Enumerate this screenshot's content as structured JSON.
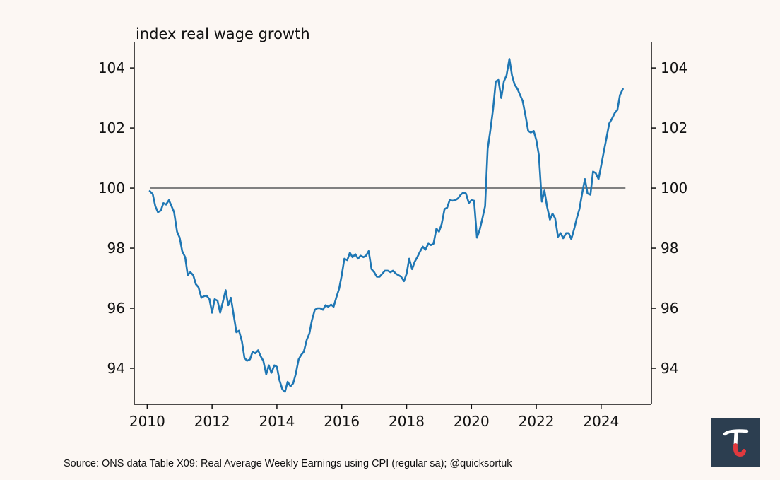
{
  "chart_data": {
    "type": "line",
    "title": "index real wage growth",
    "xlabel": "",
    "ylabel": "",
    "xlim": [
      2009.6,
      2025.55
    ],
    "ylim": [
      92.8,
      104.85
    ],
    "x_ticks": [
      2010,
      2012,
      2014,
      2016,
      2018,
      2020,
      2022,
      2024
    ],
    "y_ticks": [
      94,
      96,
      98,
      100,
      102,
      104
    ],
    "x_tick_labels": [
      "2010",
      "2012",
      "2014",
      "2016",
      "2018",
      "2020",
      "2022",
      "2024"
    ],
    "y_tick_labels": [
      "94",
      "96",
      "98",
      "100",
      "102",
      "104"
    ],
    "reference_line": {
      "value": 100,
      "x_start": 2010.08,
      "x_end": 2024.75,
      "color": "#808080"
    },
    "series": [
      {
        "name": "Real Average Weekly Earnings index",
        "color": "#1f77b4",
        "points": [
          [
            2010.08,
            99.9
          ],
          [
            2010.17,
            99.8
          ],
          [
            2010.25,
            99.4
          ],
          [
            2010.33,
            99.2
          ],
          [
            2010.42,
            99.25
          ],
          [
            2010.5,
            99.5
          ],
          [
            2010.58,
            99.45
          ],
          [
            2010.67,
            99.6
          ],
          [
            2010.75,
            99.4
          ],
          [
            2010.83,
            99.2
          ],
          [
            2010.92,
            98.55
          ],
          [
            2011.0,
            98.35
          ],
          [
            2011.08,
            97.9
          ],
          [
            2011.17,
            97.7
          ],
          [
            2011.25,
            97.1
          ],
          [
            2011.33,
            97.2
          ],
          [
            2011.42,
            97.1
          ],
          [
            2011.5,
            96.8
          ],
          [
            2011.58,
            96.7
          ],
          [
            2011.67,
            96.35
          ],
          [
            2011.75,
            96.4
          ],
          [
            2011.83,
            96.42
          ],
          [
            2011.92,
            96.3
          ],
          [
            2012.0,
            95.85
          ],
          [
            2012.08,
            96.3
          ],
          [
            2012.17,
            96.25
          ],
          [
            2012.25,
            95.85
          ],
          [
            2012.33,
            96.2
          ],
          [
            2012.42,
            96.6
          ],
          [
            2012.5,
            96.1
          ],
          [
            2012.58,
            96.35
          ],
          [
            2012.67,
            95.75
          ],
          [
            2012.75,
            95.2
          ],
          [
            2012.83,
            95.25
          ],
          [
            2012.92,
            94.9
          ],
          [
            2013.0,
            94.35
          ],
          [
            2013.08,
            94.25
          ],
          [
            2013.17,
            94.3
          ],
          [
            2013.25,
            94.55
          ],
          [
            2013.33,
            94.5
          ],
          [
            2013.42,
            94.6
          ],
          [
            2013.5,
            94.4
          ],
          [
            2013.58,
            94.25
          ],
          [
            2013.67,
            93.8
          ],
          [
            2013.75,
            94.1
          ],
          [
            2013.83,
            93.85
          ],
          [
            2013.92,
            94.1
          ],
          [
            2014.0,
            94.05
          ],
          [
            2014.08,
            93.6
          ],
          [
            2014.17,
            93.3
          ],
          [
            2014.25,
            93.22
          ],
          [
            2014.33,
            93.55
          ],
          [
            2014.42,
            93.4
          ],
          [
            2014.5,
            93.5
          ],
          [
            2014.58,
            93.8
          ],
          [
            2014.67,
            94.3
          ],
          [
            2014.75,
            94.45
          ],
          [
            2014.83,
            94.55
          ],
          [
            2014.92,
            94.95
          ],
          [
            2015.0,
            95.15
          ],
          [
            2015.08,
            95.6
          ],
          [
            2015.17,
            95.95
          ],
          [
            2015.25,
            96.0
          ],
          [
            2015.33,
            96.0
          ],
          [
            2015.42,
            95.95
          ],
          [
            2015.5,
            96.1
          ],
          [
            2015.58,
            96.05
          ],
          [
            2015.67,
            96.12
          ],
          [
            2015.75,
            96.05
          ],
          [
            2015.83,
            96.35
          ],
          [
            2015.92,
            96.65
          ],
          [
            2016.0,
            97.1
          ],
          [
            2016.08,
            97.65
          ],
          [
            2016.17,
            97.6
          ],
          [
            2016.25,
            97.85
          ],
          [
            2016.33,
            97.7
          ],
          [
            2016.42,
            97.8
          ],
          [
            2016.5,
            97.65
          ],
          [
            2016.58,
            97.75
          ],
          [
            2016.67,
            97.7
          ],
          [
            2016.75,
            97.75
          ],
          [
            2016.83,
            97.9
          ],
          [
            2016.92,
            97.3
          ],
          [
            2017.0,
            97.2
          ],
          [
            2017.08,
            97.05
          ],
          [
            2017.17,
            97.05
          ],
          [
            2017.25,
            97.15
          ],
          [
            2017.33,
            97.25
          ],
          [
            2017.42,
            97.25
          ],
          [
            2017.5,
            97.2
          ],
          [
            2017.58,
            97.25
          ],
          [
            2017.67,
            97.15
          ],
          [
            2017.75,
            97.1
          ],
          [
            2017.83,
            97.05
          ],
          [
            2017.92,
            96.9
          ],
          [
            2018.0,
            97.15
          ],
          [
            2018.08,
            97.65
          ],
          [
            2018.17,
            97.3
          ],
          [
            2018.25,
            97.55
          ],
          [
            2018.33,
            97.7
          ],
          [
            2018.42,
            97.9
          ],
          [
            2018.5,
            98.05
          ],
          [
            2018.58,
            97.95
          ],
          [
            2018.67,
            98.15
          ],
          [
            2018.75,
            98.1
          ],
          [
            2018.83,
            98.15
          ],
          [
            2018.92,
            98.65
          ],
          [
            2019.0,
            98.55
          ],
          [
            2019.08,
            98.8
          ],
          [
            2019.17,
            99.3
          ],
          [
            2019.25,
            99.35
          ],
          [
            2019.33,
            99.6
          ],
          [
            2019.42,
            99.58
          ],
          [
            2019.5,
            99.6
          ],
          [
            2019.58,
            99.65
          ],
          [
            2019.67,
            99.78
          ],
          [
            2019.75,
            99.85
          ],
          [
            2019.83,
            99.82
          ],
          [
            2019.92,
            99.5
          ],
          [
            2020.0,
            99.6
          ],
          [
            2020.08,
            99.58
          ],
          [
            2020.17,
            98.35
          ],
          [
            2020.25,
            98.6
          ],
          [
            2020.33,
            98.95
          ],
          [
            2020.42,
            99.4
          ],
          [
            2020.5,
            101.3
          ],
          [
            2020.58,
            101.9
          ],
          [
            2020.67,
            102.65
          ],
          [
            2020.75,
            103.55
          ],
          [
            2020.83,
            103.6
          ],
          [
            2020.92,
            103.0
          ],
          [
            2021.0,
            103.55
          ],
          [
            2021.08,
            103.75
          ],
          [
            2021.17,
            104.3
          ],
          [
            2021.25,
            103.75
          ],
          [
            2021.33,
            103.45
          ],
          [
            2021.42,
            103.3
          ],
          [
            2021.5,
            103.1
          ],
          [
            2021.58,
            102.9
          ],
          [
            2021.67,
            102.4
          ],
          [
            2021.75,
            101.9
          ],
          [
            2021.83,
            101.85
          ],
          [
            2021.92,
            101.9
          ],
          [
            2022.0,
            101.6
          ],
          [
            2022.08,
            101.1
          ],
          [
            2022.17,
            99.55
          ],
          [
            2022.25,
            99.92
          ],
          [
            2022.33,
            99.4
          ],
          [
            2022.42,
            98.95
          ],
          [
            2022.5,
            99.15
          ],
          [
            2022.58,
            99.0
          ],
          [
            2022.67,
            98.38
          ],
          [
            2022.75,
            98.5
          ],
          [
            2022.83,
            98.33
          ],
          [
            2022.92,
            98.5
          ],
          [
            2023.0,
            98.5
          ],
          [
            2023.08,
            98.3
          ],
          [
            2023.17,
            98.65
          ],
          [
            2023.25,
            99.0
          ],
          [
            2023.33,
            99.3
          ],
          [
            2023.42,
            99.85
          ],
          [
            2023.5,
            100.3
          ],
          [
            2023.58,
            99.82
          ],
          [
            2023.67,
            99.78
          ],
          [
            2023.75,
            100.55
          ],
          [
            2023.83,
            100.5
          ],
          [
            2023.92,
            100.3
          ],
          [
            2024.0,
            100.75
          ],
          [
            2024.08,
            101.2
          ],
          [
            2024.17,
            101.7
          ],
          [
            2024.25,
            102.15
          ],
          [
            2024.33,
            102.3
          ],
          [
            2024.42,
            102.5
          ],
          [
            2024.5,
            102.6
          ],
          [
            2024.58,
            103.1
          ],
          [
            2024.67,
            103.3
          ]
        ]
      }
    ]
  },
  "source_text": "Source: ONS data Table X09: Real Average Weekly Earnings using CPI (regular sa); @quicksortuk",
  "logo": {
    "letter": "τ",
    "bg_color": "#2c3e50",
    "accent_color": "#e0393e"
  },
  "colors": {
    "background": "#fcf7f3",
    "axis": "#111111",
    "series": "#1f77b4",
    "reference": "#808080"
  }
}
